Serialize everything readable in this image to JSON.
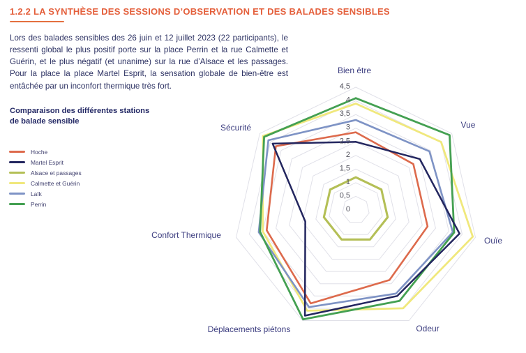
{
  "page": {
    "title": "1.2.2 LA SYNTHÈSE DES SESSIONS D’OBSERVATION ET DES BALADES SENSIBLES",
    "paragraph": "Lors des balades sensibles des 26 juin et 12 juillet 2023 (22 participants), le ressenti global le plus positif porte sur la place Perrin et la rue Calmette et Guérin, et le plus négatif (et unanime) sur la rue d’Alsace et les passages. Pour la place la place Martel Esprit, la sensation globale de bien-être est entâchée par un inconfort thermique très fort."
  },
  "legend": {
    "title_line1": "Comparaison des différentes stations",
    "title_line2": "de balade sensible"
  },
  "colors": {
    "title_accent": "#e45f3b",
    "body_text": "#2d3263",
    "grid": "#e0e0e8",
    "axis_label": "#3d3e80",
    "tick_label": "#53535e"
  },
  "chart_data": {
    "type": "radar",
    "title": "Comparaison des différentes stations de balade sensible",
    "categories": [
      "Bien être",
      "Vue",
      "Ouïe",
      "Odeur",
      "Déplacements piétons",
      "Confort Thermique",
      "Sécurité"
    ],
    "range": [
      0,
      4.5
    ],
    "tick_step": 0.5,
    "tick_labels": [
      "4,5",
      "4",
      "3,5",
      "3",
      "2,5",
      "2",
      "1,5",
      "1",
      "0,5",
      "0"
    ],
    "tick_values": [
      4.5,
      4,
      3.5,
      3,
      2.5,
      2,
      1.5,
      1,
      0.5,
      0
    ],
    "grid": "concentric-polygons-no-spokes",
    "legend_position": "left",
    "series": [
      {
        "name": "Hoche",
        "color": "#dd6a4c",
        "values": [
          2.85,
          2.7,
          2.7,
          2.85,
          3.8,
          3.35,
          3.75
        ]
      },
      {
        "name": "Martel Esprit",
        "color": "#23265f",
        "values": [
          2.5,
          3.0,
          3.9,
          3.5,
          4.3,
          1.9,
          3.9
        ]
      },
      {
        "name": "Alsace et passages",
        "color": "#b4bf56",
        "values": [
          1.2,
          1.2,
          1.2,
          1.2,
          1.2,
          1.2,
          1.2
        ]
      },
      {
        "name": "Calmette et Guérin",
        "color": "#f0e87c",
        "values": [
          3.9,
          4.0,
          4.4,
          4.0,
          4.1,
          3.5,
          4.35
        ]
      },
      {
        "name": "Laïk",
        "color": "#7e93c5",
        "values": [
          3.3,
          3.45,
          3.65,
          3.4,
          3.95,
          3.65,
          4.1
        ]
      },
      {
        "name": "Perrin",
        "color": "#44a052",
        "values": [
          4.1,
          4.4,
          3.7,
          3.7,
          4.45,
          3.6,
          4.3
        ]
      }
    ]
  }
}
